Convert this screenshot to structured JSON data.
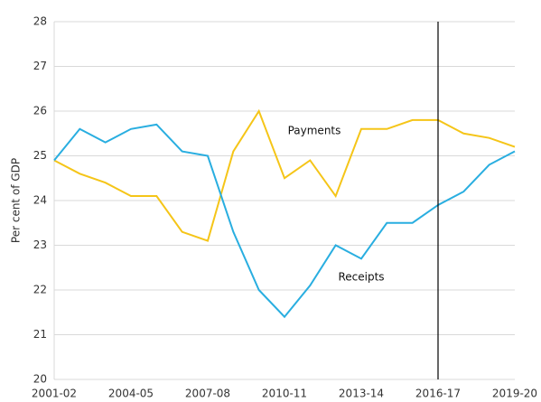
{
  "chart_data": {
    "type": "line",
    "y_label": "Per cent of GDP",
    "categories": [
      "2001-02",
      null,
      null,
      "2004-05",
      null,
      null,
      "2007-08",
      null,
      null,
      "2010-11",
      null,
      null,
      "2013-14",
      null,
      null,
      "2016-17",
      null,
      null,
      "2019-20"
    ],
    "series": [
      {
        "name": "Payments",
        "color": "#f5c518",
        "values": [
          24.9,
          24.6,
          24.4,
          24.1,
          24.1,
          23.3,
          23.1,
          25.1,
          26.0,
          24.5,
          24.9,
          24.1,
          25.6,
          25.6,
          25.8,
          25.8,
          25.5,
          25.4,
          25.2
        ]
      },
      {
        "name": "Receipts",
        "color": "#29aee0",
        "values": [
          24.9,
          25.6,
          25.3,
          25.6,
          25.7,
          25.1,
          25.0,
          23.3,
          22.0,
          21.4,
          22.1,
          23.0,
          22.7,
          23.5,
          23.5,
          23.9,
          24.2,
          24.8,
          25.1
        ]
      }
    ],
    "ylim": [
      20,
      28
    ],
    "yticks": [
      20,
      21,
      22,
      23,
      24,
      25,
      26,
      27,
      28
    ],
    "grid": true,
    "vline": "2016-17"
  }
}
